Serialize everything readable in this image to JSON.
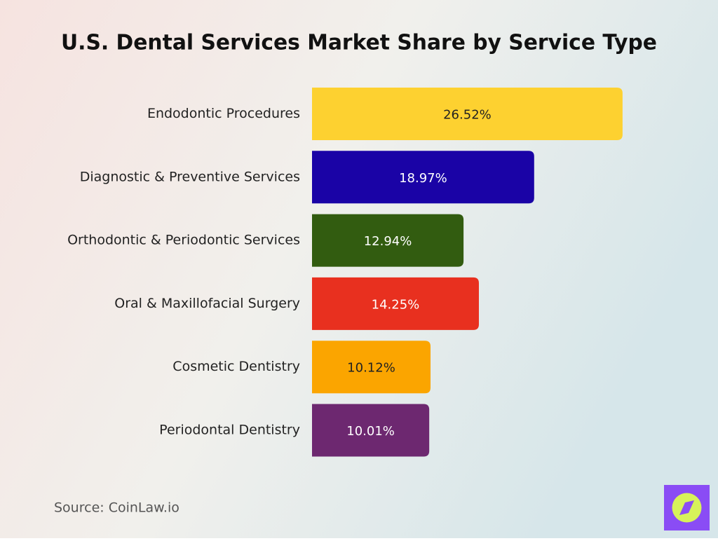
{
  "chart_data": {
    "type": "bar",
    "orientation": "horizontal",
    "title": "U.S. Dental Services Market Share by Service Type",
    "categories": [
      "Endodontic Procedures",
      "Diagnostic & Preventive Services",
      "Orthodontic & Periodontic Services",
      "Oral & Maxillofacial Surgery",
      "Cosmetic Dentistry",
      "Periodontal Dentistry"
    ],
    "values": [
      26.52,
      18.97,
      12.94,
      14.25,
      10.12,
      10.01
    ],
    "value_labels": [
      "26.52%",
      "18.97%",
      "12.94%",
      "14.25%",
      "10.12%",
      "10.01%"
    ],
    "colors": [
      "#fdd130",
      "#1a03a6",
      "#325c10",
      "#e8301f",
      "#fba500",
      "#6d2870"
    ],
    "source": "Source: CoinLaw.io"
  }
}
